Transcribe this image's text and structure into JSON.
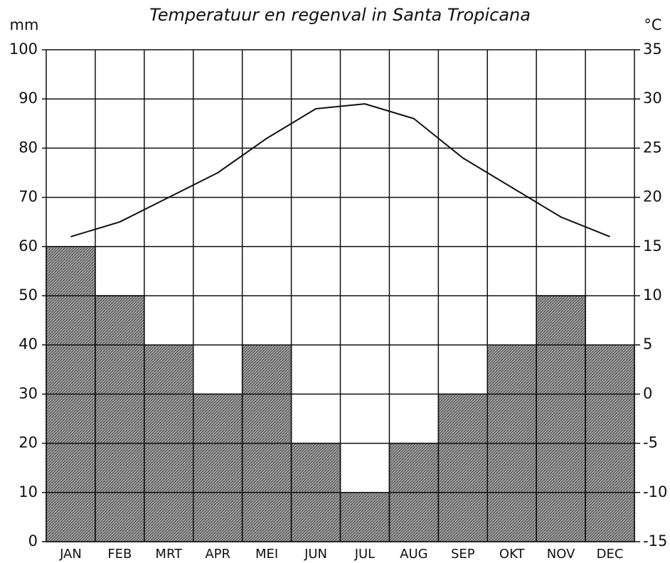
{
  "chart_data": {
    "type": "bar",
    "title": "Temperatuur en regenval in Santa Tropicana",
    "y_label": "mm",
    "y2_label": "°C",
    "categories": [
      "JAN",
      "FEB",
      "MRT",
      "APR",
      "MEI",
      "JUN",
      "JUL",
      "AUG",
      "SEP",
      "OKT",
      "NOV",
      "DEC"
    ],
    "series": [
      {
        "type": "bar",
        "color": "#9a9a9a",
        "values": [
          60,
          50,
          40,
          30,
          40,
          20,
          10,
          20,
          30,
          40,
          50,
          40
        ]
      },
      {
        "type": "line",
        "axis": "y2",
        "color": "#111111",
        "values": [
          16,
          17.5,
          20,
          22.5,
          26,
          29,
          29.5,
          28,
          24,
          21,
          18,
          16
        ]
      }
    ],
    "ylim": [
      0,
      100
    ],
    "yticks": [
      0,
      10,
      20,
      30,
      40,
      50,
      60,
      70,
      80,
      90,
      100
    ],
    "y2lim": [
      -15,
      35
    ],
    "y2ticks": [
      -15,
      -10,
      -5,
      0,
      5,
      10,
      15,
      20,
      25,
      30,
      35
    ],
    "grid": true
  }
}
